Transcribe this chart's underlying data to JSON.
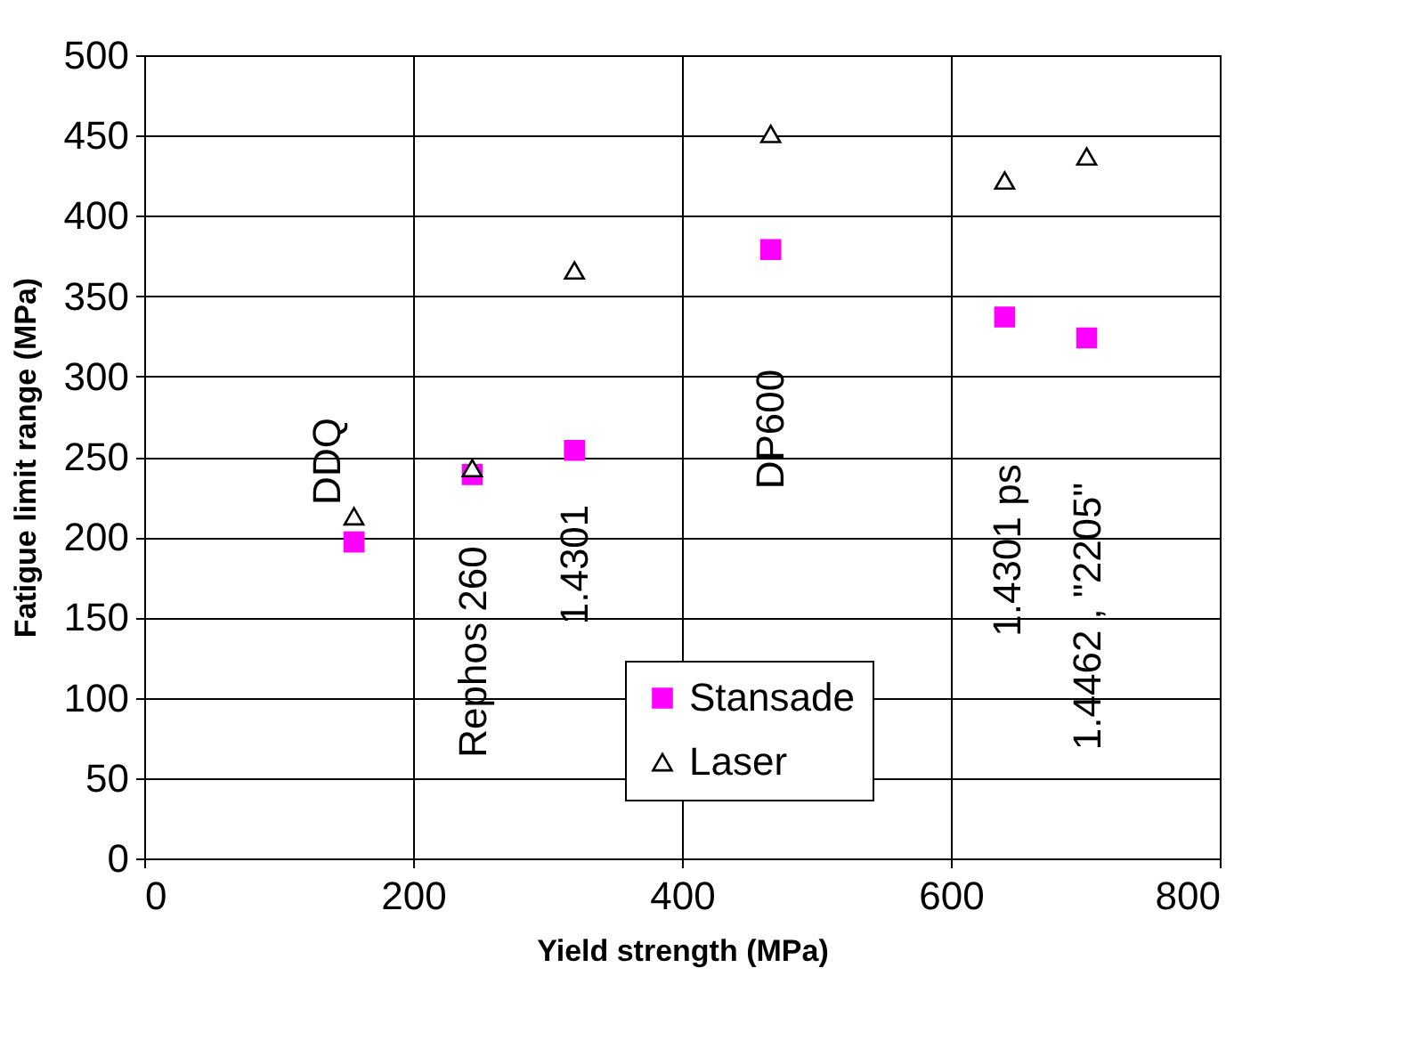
{
  "chart_data": {
    "type": "scatter",
    "xlabel": "Yield strength (MPa)",
    "ylabel": "Fatigue limit range (MPa)",
    "x": [
      156,
      244,
      320,
      466,
      640,
      701
    ],
    "series": [
      {
        "name": "Stansade",
        "color": "#ff00ff",
        "marker": "square",
        "values": [
          197,
          239,
          254,
          379,
          337,
          324
        ]
      },
      {
        "name": "Laser",
        "color": "#000000",
        "marker": "triangle",
        "values": [
          213,
          243,
          366,
          451,
          422,
          437
        ]
      }
    ],
    "xlim": [
      0,
      800
    ],
    "xticks": [
      0,
      200,
      400,
      600,
      800
    ],
    "ylim": [
      0,
      500
    ],
    "yticks": [
      0,
      50,
      100,
      150,
      200,
      250,
      300,
      350,
      400,
      450,
      500
    ],
    "grid": true,
    "legend": "bottom",
    "annotations": [
      "DDQ",
      "Rephos 260",
      "1.4301",
      "DP600",
      "1.4301 ps",
      "1.4462 , \"2205\""
    ]
  }
}
